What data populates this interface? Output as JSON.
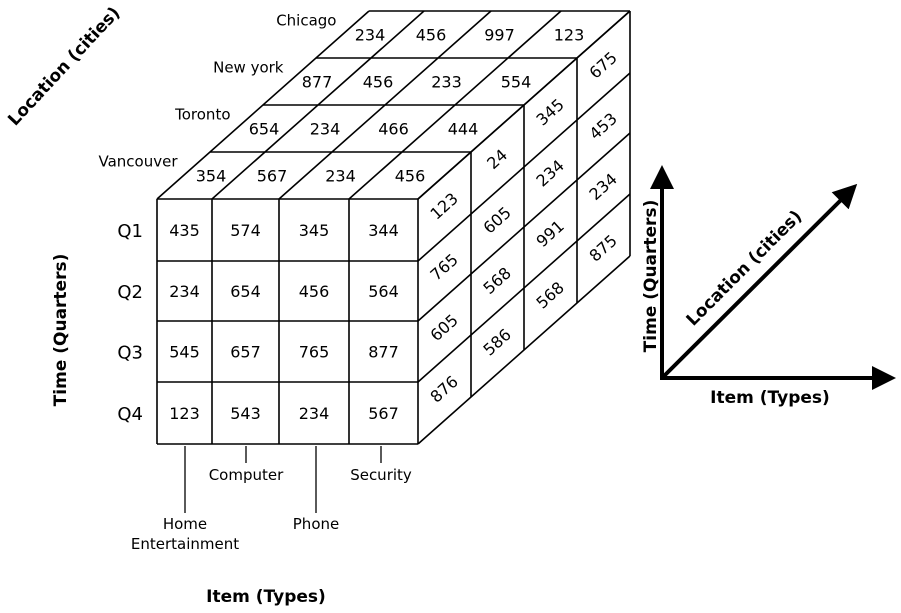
{
  "cube": {
    "cities": [
      "Vancouver",
      "Toronto",
      "New york",
      "Chicago"
    ],
    "quarters": [
      "Q1",
      "Q2",
      "Q3",
      "Q4"
    ],
    "items": [
      "Home\nEntertainment",
      "Computer",
      "Phone",
      "Security"
    ],
    "front_values": [
      [
        "435",
        "574",
        "345",
        "344"
      ],
      [
        "234",
        "654",
        "456",
        "564"
      ],
      [
        "545",
        "657",
        "765",
        "877"
      ],
      [
        "123",
        "543",
        "234",
        "567"
      ]
    ],
    "top_values": {
      "Vancouver": [
        "354",
        "567",
        "234",
        "456"
      ],
      "Toronto": [
        "654",
        "234",
        "466",
        "444"
      ],
      "New york": [
        "877",
        "456",
        "233",
        "554"
      ],
      "Chicago": [
        "234",
        "456",
        "997",
        "123"
      ]
    },
    "side_values": {
      "Vancouver": [
        "123",
        "765",
        "605",
        "876"
      ],
      "Toronto": [
        "24",
        "605",
        "568",
        "586"
      ],
      "New york": [
        "345",
        "234",
        "991",
        "568"
      ],
      "Chicago": [
        "675",
        "453",
        "234",
        "875"
      ]
    },
    "axis_titles": {
      "location": "Location (cities)",
      "time": "Time (Quarters)",
      "item": "Item (Types)"
    }
  },
  "legend_axes": {
    "time": "Time (Quarters)",
    "location": "Location (cities)",
    "item": "Item (Types)"
  }
}
